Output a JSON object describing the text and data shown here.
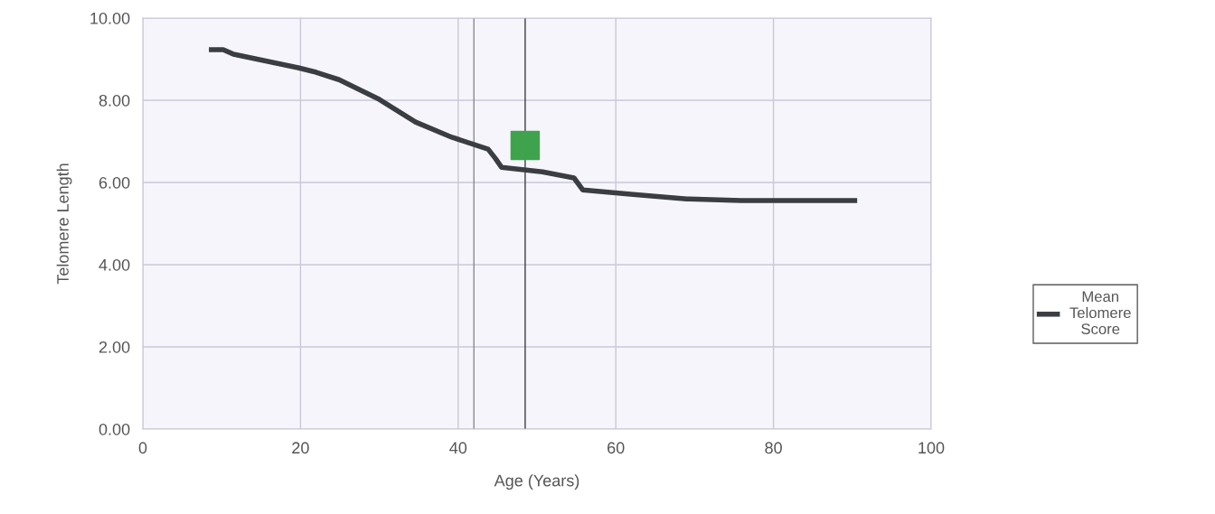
{
  "chart_data": {
    "type": "line",
    "xlabel": "Age (Years)",
    "ylabel": "Telomere Length",
    "xlim": [
      0,
      100
    ],
    "xticks": [
      0,
      20,
      40,
      60,
      80,
      100
    ],
    "ylim": [
      0,
      10
    ],
    "yticks": [
      {
        "value": 0,
        "label": "0.00"
      },
      {
        "value": 2,
        "label": "2.00"
      },
      {
        "value": 4,
        "label": "4.00"
      },
      {
        "value": 6,
        "label": "6.00"
      },
      {
        "value": 8,
        "label": "8.00"
      },
      {
        "value": 10,
        "label": "10.00"
      }
    ],
    "grid": true,
    "legend": "right",
    "series": [
      {
        "name": "Mean\nTelomere\nScore",
        "color": "#3a3d42",
        "x": [
          8.7,
          10.2,
          11.5,
          19.7,
          22,
          24.9,
          30,
          34.6,
          39.2,
          43.8,
          44.7,
          45.5,
          50.7,
          54.7,
          55.8,
          62.2,
          69,
          75.9,
          90.3
        ],
        "values": [
          9.23,
          9.23,
          9.12,
          8.79,
          8.68,
          8.5,
          8.02,
          7.47,
          7.1,
          6.81,
          6.59,
          6.37,
          6.26,
          6.11,
          5.82,
          5.71,
          5.6,
          5.56,
          5.56
        ]
      },
      {
        "type": "scatter",
        "marker": "square",
        "color": "#3fa34d",
        "x": [
          48.5
        ],
        "values": [
          6.9
        ]
      }
    ],
    "ref_lines": [
      {
        "axis": "x",
        "value": 48.5,
        "color": "#3a3d42"
      },
      {
        "axis": "x",
        "value": 42,
        "color": "#8a8a92"
      }
    ]
  }
}
